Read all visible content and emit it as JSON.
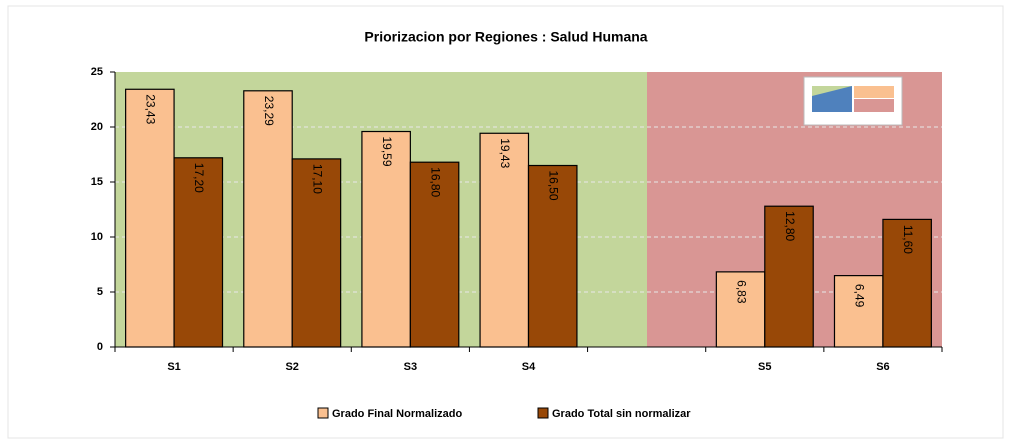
{
  "chart_data": {
    "type": "bar",
    "title": "Priorizacion por Regiones : Salud Humana",
    "categories": [
      "S1",
      "S2",
      "S3",
      "S4",
      null,
      "S5",
      "S6"
    ],
    "series": [
      {
        "name": "Grado Final Normalizado",
        "color": "#fac090",
        "values": [
          23.43,
          23.29,
          19.59,
          19.43,
          null,
          6.83,
          6.49
        ],
        "value_labels": [
          "23,43",
          "23,29",
          "19,59",
          "19,43",
          null,
          "6,83",
          "6,49"
        ]
      },
      {
        "name": "Grado Total sin normalizar",
        "color": "#984807",
        "values": [
          17.2,
          17.1,
          16.8,
          16.5,
          null,
          12.8,
          11.6
        ],
        "value_labels": [
          "17,20",
          "17,10",
          "16,80",
          "16,50",
          null,
          "12,80",
          "11,60"
        ]
      }
    ],
    "ylim": [
      0,
      25
    ],
    "yticks": [
      0,
      5,
      10,
      15,
      20,
      25
    ],
    "grid": true,
    "legend": "bottom"
  }
}
